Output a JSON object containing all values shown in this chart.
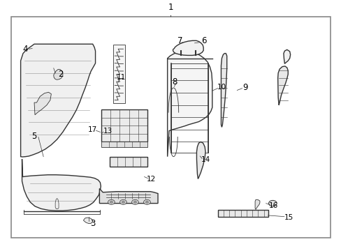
{
  "background_color": "#ffffff",
  "border_color": "#888888",
  "line_color": "#333333",
  "fig_width": 4.89,
  "fig_height": 3.6,
  "dpi": 100
}
